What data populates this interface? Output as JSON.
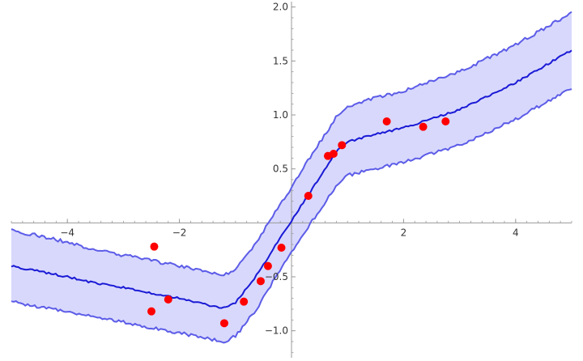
{
  "chart_data": {
    "type": "line",
    "title": "",
    "xlabel": "",
    "ylabel": "",
    "xlim": [
      -5,
      5
    ],
    "ylim": [
      -1.25,
      2.05
    ],
    "x_ticks": [
      {
        "value": -4,
        "label": "-4"
      },
      {
        "value": -2,
        "label": "-2"
      },
      {
        "value": 2,
        "label": "2"
      },
      {
        "value": 4,
        "label": "4"
      }
    ],
    "y_ticks": [
      {
        "value": -1.0,
        "label": "-1.0"
      },
      {
        "value": -0.5,
        "label": "-0.5"
      },
      {
        "value": 0.5,
        "label": "0.5"
      },
      {
        "value": 1.0,
        "label": "1.0"
      },
      {
        "value": 1.5,
        "label": "1.5"
      },
      {
        "value": 2.0,
        "label": "2.0"
      }
    ],
    "x_minor_step": 0.2,
    "y_minor_step": 0.1,
    "colors": {
      "mean": "#1a1ad6",
      "band_edge": "#5c5ce8",
      "band_fill": "#d8d8fc",
      "points": "#ff0000",
      "axis": "#999999"
    },
    "series": [
      {
        "role": "mean",
        "x": [
          -5.0,
          -4.5,
          -4.0,
          -3.5,
          -3.0,
          -2.5,
          -2.0,
          -1.5,
          -1.2,
          -1.0,
          -0.6,
          -0.3,
          0.0,
          0.3,
          0.6,
          0.8,
          1.0,
          1.5,
          2.0,
          3.0,
          4.0,
          5.0
        ],
        "y": [
          -0.4,
          -0.45,
          -0.5,
          -0.56,
          -0.6,
          -0.65,
          -0.7,
          -0.76,
          -0.79,
          -0.74,
          -0.47,
          -0.22,
          0.02,
          0.26,
          0.5,
          0.66,
          0.75,
          0.82,
          0.88,
          1.05,
          1.3,
          1.6
        ]
      },
      {
        "role": "upper",
        "x": [
          -5.0,
          -4.5,
          -4.0,
          -3.5,
          -3.0,
          -2.5,
          -2.0,
          -1.5,
          -1.2,
          -1.0,
          -0.6,
          -0.3,
          0.0,
          0.3,
          0.6,
          0.8,
          1.0,
          1.5,
          2.0,
          3.0,
          4.0,
          5.0
        ],
        "y": [
          -0.07,
          -0.12,
          -0.18,
          -0.25,
          -0.3,
          -0.35,
          -0.4,
          -0.45,
          -0.48,
          -0.43,
          -0.16,
          0.09,
          0.33,
          0.58,
          0.82,
          0.98,
          1.08,
          1.16,
          1.22,
          1.4,
          1.65,
          1.95
        ]
      },
      {
        "role": "lower",
        "x": [
          -5.0,
          -4.5,
          -4.0,
          -3.5,
          -3.0,
          -2.5,
          -2.0,
          -1.5,
          -1.2,
          -1.0,
          -0.6,
          -0.3,
          0.0,
          0.3,
          0.6,
          0.8,
          1.0,
          1.5,
          2.0,
          3.0,
          4.0,
          5.0
        ],
        "y": [
          -0.73,
          -0.78,
          -0.82,
          -0.87,
          -0.92,
          -0.97,
          -1.02,
          -1.07,
          -1.1,
          -1.05,
          -0.78,
          -0.52,
          -0.28,
          -0.04,
          0.19,
          0.35,
          0.44,
          0.5,
          0.56,
          0.72,
          0.96,
          1.25
        ]
      }
    ],
    "points": {
      "x": [
        -2.45,
        -2.5,
        -2.2,
        -1.2,
        -0.85,
        -0.55,
        -0.42,
        -0.18,
        0.3,
        0.65,
        0.75,
        0.9,
        1.7,
        2.35,
        2.75
      ],
      "y": [
        -0.22,
        -0.82,
        -0.71,
        -0.93,
        -0.73,
        -0.54,
        -0.4,
        -0.23,
        0.25,
        0.62,
        0.64,
        0.72,
        0.94,
        0.89,
        0.94
      ]
    }
  }
}
